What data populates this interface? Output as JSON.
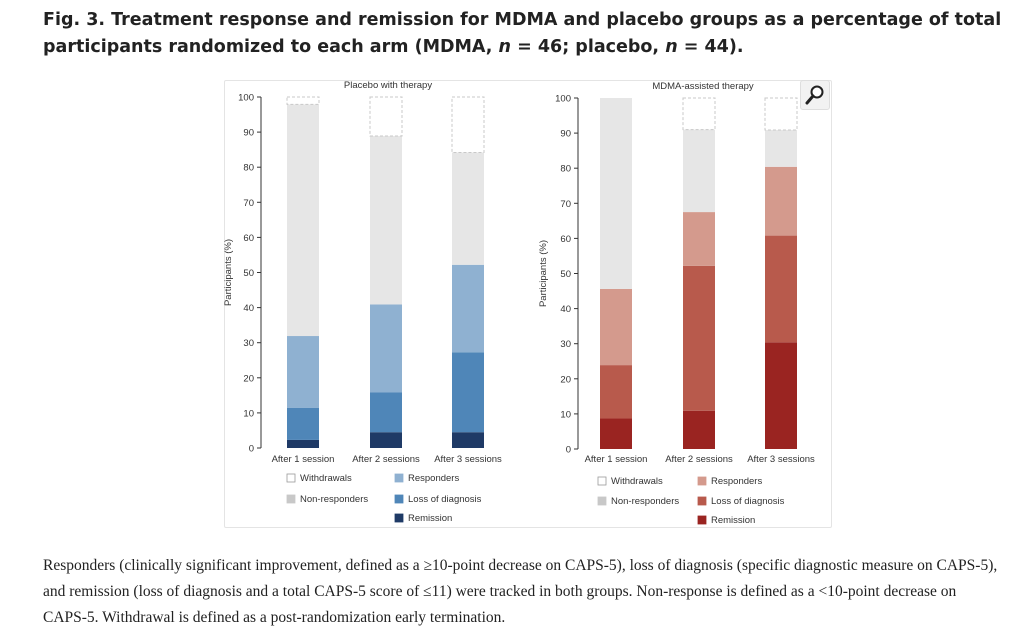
{
  "caption": {
    "prefix": "Fig. 3. Treatment response and remission for MDMA and placebo groups as a percentage of total participants randomized to each arm (MDMA, ",
    "n_symbol": "n",
    "mid": " = 46; placebo, ",
    "n_symbol2": "n",
    "suffix": " = 44)."
  },
  "footnote": "Responders (clinically significant improvement, defined as a ≥10-point decrease on CAPS-5), loss of diagnosis (specific diagnostic measure on CAPS-5), and remission (loss of diagnosis and a total CAPS-5 score of ≤11) were tracked in both groups. Non-response is defined as a <10-point decrease on CAPS-5. Withdrawal is defined as a post-randomization early termination.",
  "magnify_icon": "magnifier-icon",
  "chart_data": [
    {
      "type": "bar",
      "stacked": true,
      "title": "Placebo with therapy",
      "ylabel": "Participants (%)",
      "ylim": [
        0,
        100
      ],
      "yticks": [
        "0",
        "10",
        "20",
        "30",
        "40",
        "50",
        "60",
        "70",
        "80",
        "90",
        "100"
      ],
      "categories": [
        "After 1 session",
        "After 2 sessions",
        "After 3 sessions"
      ],
      "series": [
        {
          "name": "Remission",
          "color": "#1f3a66",
          "values": [
            2.3,
            4.5,
            4.5
          ]
        },
        {
          "name": "Loss of diagnosis",
          "color": "#4f86b8",
          "values": [
            9.1,
            11.4,
            22.7
          ]
        },
        {
          "name": "Responders",
          "color": "#8fb1d1",
          "values": [
            20.5,
            25.0,
            25.0
          ]
        },
        {
          "name": "Non-responders",
          "color": "#e6e6e6",
          "values": [
            66.0,
            48.0,
            32.0
          ]
        },
        {
          "name": "Withdrawals",
          "color": "#ffffff",
          "values": [
            2.1,
            11.1,
            15.8
          ]
        }
      ],
      "legend": [
        {
          "name": "Withdrawals",
          "color": "#ffffff"
        },
        {
          "name": "Responders",
          "color": "#8fb1d1"
        },
        {
          "name": "Non-responders",
          "color": "#c8c8c8"
        },
        {
          "name": "Loss of diagnosis",
          "color": "#4f86b8"
        },
        {
          "name": "Remission",
          "color": "#1f3a66"
        }
      ]
    },
    {
      "type": "bar",
      "stacked": true,
      "title": "MDMA-assisted therapy",
      "ylabel": "Participants (%)",
      "ylim": [
        0,
        100
      ],
      "yticks": [
        "0",
        "10",
        "20",
        "30",
        "40",
        "50",
        "60",
        "70",
        "80",
        "90",
        "100"
      ],
      "categories": [
        "After 1 session",
        "After 2 sessions",
        "After 3 sessions"
      ],
      "series": [
        {
          "name": "Remission",
          "color": "#9a2421",
          "values": [
            8.7,
            10.9,
            30.4
          ]
        },
        {
          "name": "Loss of diagnosis",
          "color": "#b85a4c",
          "values": [
            15.2,
            41.3,
            30.4
          ]
        },
        {
          "name": "Responders",
          "color": "#d49a8d",
          "values": [
            21.7,
            15.3,
            19.6
          ]
        },
        {
          "name": "Non-responders",
          "color": "#e6e6e6",
          "values": [
            54.4,
            23.5,
            10.5
          ]
        },
        {
          "name": "Withdrawals",
          "color": "#ffffff",
          "values": [
            0,
            9.0,
            9.1
          ]
        }
      ],
      "legend": [
        {
          "name": "Withdrawals",
          "color": "#ffffff"
        },
        {
          "name": "Responders",
          "color": "#d49a8d"
        },
        {
          "name": "Non-responders",
          "color": "#c8c8c8"
        },
        {
          "name": "Loss of diagnosis",
          "color": "#b85a4c"
        },
        {
          "name": "Remission",
          "color": "#9a2421"
        }
      ]
    }
  ]
}
